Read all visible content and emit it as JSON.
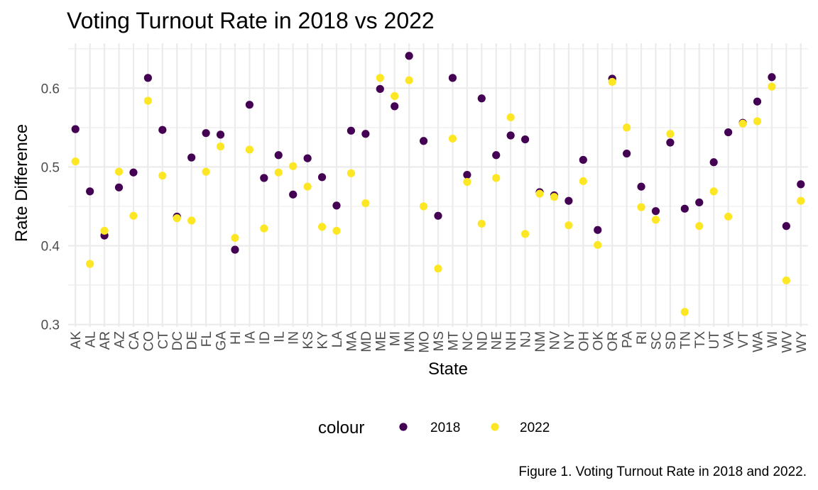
{
  "chart_data": {
    "type": "scatter",
    "title": "Voting Turnout Rate in 2018 vs 2022",
    "xlabel": "State",
    "ylabel": "Rate Difference",
    "caption": "Figure 1. Voting Turnout Rate in 2018 and 2022.",
    "ylim": [
      0.297,
      0.657
    ],
    "yticks": [
      0.3,
      0.4,
      0.5,
      0.6
    ],
    "ytick_labels": [
      "0.3",
      "0.4",
      "0.5",
      "0.6"
    ],
    "grid": true,
    "legend_title": "colour",
    "legend_position": "bottom",
    "categories": [
      "AK",
      "AL",
      "AR",
      "AZ",
      "CA",
      "CO",
      "CT",
      "DC",
      "DE",
      "FL",
      "GA",
      "HI",
      "IA",
      "ID",
      "IL",
      "IN",
      "KS",
      "KY",
      "LA",
      "MA",
      "MD",
      "ME",
      "MI",
      "MN",
      "MO",
      "MS",
      "MT",
      "NC",
      "ND",
      "NE",
      "NH",
      "NJ",
      "NM",
      "NV",
      "NY",
      "OH",
      "OK",
      "OR",
      "PA",
      "RI",
      "SC",
      "SD",
      "TN",
      "TX",
      "UT",
      "VA",
      "VT",
      "WA",
      "WI",
      "WV",
      "WY"
    ],
    "series": [
      {
        "name": "2018",
        "color": "#440154",
        "values": [
          0.548,
          0.469,
          0.413,
          0.474,
          0.493,
          0.613,
          0.547,
          0.437,
          0.512,
          0.543,
          0.541,
          0.395,
          0.579,
          0.486,
          0.515,
          0.465,
          0.511,
          0.487,
          0.451,
          0.546,
          0.542,
          0.599,
          0.577,
          0.641,
          0.533,
          0.438,
          0.613,
          0.49,
          0.587,
          0.515,
          0.54,
          0.535,
          0.468,
          0.464,
          0.457,
          0.509,
          0.42,
          0.612,
          0.517,
          0.475,
          0.444,
          0.531,
          0.447,
          0.455,
          0.506,
          0.544,
          0.556,
          0.583,
          0.614,
          0.425,
          0.478
        ]
      },
      {
        "name": "2022",
        "color": "#fde725",
        "values": [
          0.507,
          0.377,
          0.419,
          0.494,
          0.438,
          0.584,
          0.489,
          0.435,
          0.432,
          0.494,
          0.526,
          0.41,
          0.522,
          0.422,
          0.493,
          0.501,
          0.475,
          0.424,
          0.419,
          0.492,
          0.454,
          0.613,
          0.59,
          0.61,
          0.45,
          0.371,
          0.536,
          0.481,
          0.428,
          0.486,
          0.563,
          0.415,
          0.466,
          0.462,
          0.426,
          0.482,
          0.401,
          0.608,
          0.55,
          0.449,
          0.433,
          0.542,
          0.316,
          0.425,
          0.469,
          0.437,
          0.555,
          0.558,
          0.602,
          0.356,
          0.457
        ]
      }
    ]
  }
}
